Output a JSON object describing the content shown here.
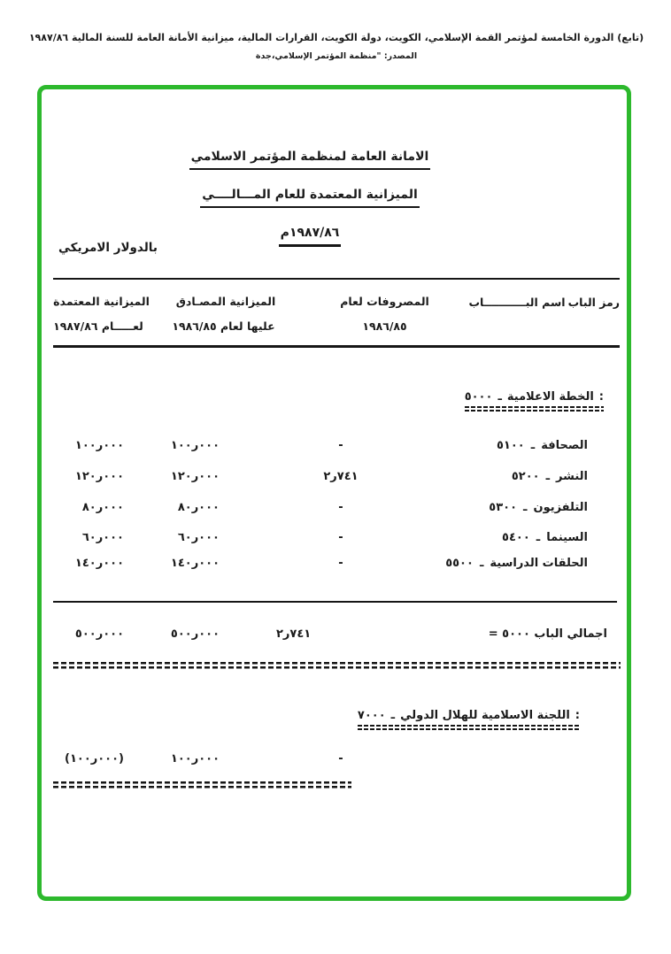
{
  "scan_header": {
    "line1": "(تابع) الدورة الخامسة لمؤتمر القمة الإسلامي، الكويت، دولة الكويت، القرارات المالية، ميزانية الأمانة العامة للسنة المالية ١٩٨٧/٨٦",
    "line2": "المصدر: \"منظمة المؤتمر الإسلامي،جدة"
  },
  "document": {
    "org_title": "الامانة العامة لمنظمة المؤتمر الاسلامي",
    "budget_title": "الميزانية المعتمدة للعام المـــالــــي",
    "fiscal_year": "١٩٨٧/٨٦م",
    "currency_note": "بالدولار الامريكي"
  },
  "table": {
    "dash": "ـ",
    "columns": {
      "code": "رمز الباب",
      "name": "اسم البـــــــــــاب",
      "expenses_l1": "المصروفات لعام",
      "expenses_l2": "١٩٨٦/٨٥",
      "approved_l1": "الميزانية المصـادق",
      "approved_l2": "عليها لعام ١٩٨٦/٨٥",
      "adopted_l1": "الميزانية المعتمدة",
      "adopted_l2": "لعـــــام ١٩٨٧/٨٦"
    },
    "section_5000": {
      "code": "٥٠٠٠",
      "title": "الخطة الاعلامية",
      "colon": ":",
      "rows": [
        {
          "code": "٥١٠٠",
          "name": "الصحافة",
          "expenses": "-",
          "approved": "١٠٠ر٠٠٠",
          "adopted": "١٠٠ر٠٠٠"
        },
        {
          "code": "٥٢٠٠",
          "name": "النشر",
          "expenses": "٢ر٧٤١",
          "approved": "١٢٠ر٠٠٠",
          "adopted": "١٢٠ر٠٠٠"
        },
        {
          "code": "٥٣٠٠",
          "name": "التلفزيون",
          "expenses": "-",
          "approved": "٨٠ر٠٠٠",
          "adopted": "٨٠ر٠٠٠"
        },
        {
          "code": "٥٤٠٠",
          "name": "السينما",
          "expenses": "-",
          "approved": "٦٠ر٠٠٠",
          "adopted": "٦٠ر٠٠٠"
        },
        {
          "code": "٥٥٠٠",
          "name": "الحلقات الدراسية",
          "expenses": "-",
          "approved": "١٤٠ر٠٠٠",
          "adopted": "١٤٠ر٠٠٠"
        }
      ],
      "total": {
        "label": "اجمالي الباب ٥٠٠٠ =",
        "expenses": "٢ر٧٤١",
        "approved": "٥٠٠ر٠٠٠",
        "adopted": "٥٠٠ر٠٠٠"
      }
    },
    "section_7000": {
      "code": "٧٠٠٠",
      "title": "اللجنة الاسلامية للهلال الدولي",
      "colon": ":",
      "rows": [
        {
          "expenses": "-",
          "approved": "١٠٠ر٠٠٠",
          "adopted": "(١٠٠ر٠٠٠)"
        }
      ]
    }
  },
  "colors": {
    "frame_green": "#2db92d",
    "ink": "#1b1b1b"
  }
}
